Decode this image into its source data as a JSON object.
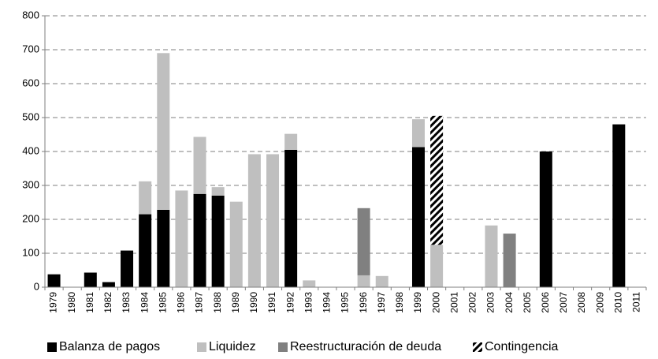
{
  "chart_data": {
    "type": "stacked_bar",
    "categories": [
      "1979",
      "1980",
      "1981",
      "1982",
      "1983",
      "1984",
      "1985",
      "1986",
      "1987",
      "1988",
      "1989",
      "1990",
      "1991",
      "1992",
      "1993",
      "1994",
      "1995",
      "1996",
      "1997",
      "1998",
      "1999",
      "2000",
      "2001",
      "2002",
      "2003",
      "2004",
      "2005",
      "2006",
      "2007",
      "2008",
      "2009",
      "2010",
      "2011"
    ],
    "series": [
      {
        "name": "Balanza de pagos",
        "color": "#000000",
        "values": [
          38,
          0,
          43,
          15,
          108,
          215,
          228,
          0,
          275,
          270,
          0,
          0,
          0,
          405,
          0,
          0,
          0,
          0,
          0,
          0,
          413,
          0,
          0,
          0,
          0,
          0,
          0,
          400,
          0,
          0,
          0,
          480,
          0
        ]
      },
      {
        "name": "Liquidez",
        "color": "#bfbfbf",
        "values": [
          0,
          0,
          0,
          0,
          0,
          97,
          462,
          285,
          168,
          25,
          252,
          392,
          392,
          47,
          20,
          0,
          0,
          35,
          33,
          0,
          82,
          125,
          0,
          0,
          182,
          0,
          0,
          0,
          0,
          0,
          0,
          0,
          0
        ]
      },
      {
        "name": "Reestructuración de deuda",
        "color": "#808080",
        "values": [
          0,
          0,
          0,
          0,
          0,
          0,
          0,
          0,
          0,
          0,
          0,
          0,
          0,
          0,
          0,
          0,
          0,
          198,
          0,
          0,
          0,
          0,
          0,
          0,
          0,
          158,
          0,
          0,
          0,
          0,
          0,
          0,
          0
        ]
      },
      {
        "name": "Contingencia",
        "color": "#000000",
        "hatch": true,
        "values": [
          0,
          0,
          0,
          0,
          0,
          0,
          0,
          0,
          0,
          0,
          0,
          0,
          0,
          0,
          0,
          0,
          0,
          0,
          0,
          0,
          0,
          380,
          0,
          0,
          0,
          0,
          0,
          0,
          0,
          0,
          0,
          0,
          0
        ]
      }
    ],
    "ylim": [
      0,
      800
    ],
    "yticks": [
      0,
      100,
      200,
      300,
      400,
      500,
      600,
      700,
      800
    ],
    "grid": true,
    "legend": "bottom"
  }
}
